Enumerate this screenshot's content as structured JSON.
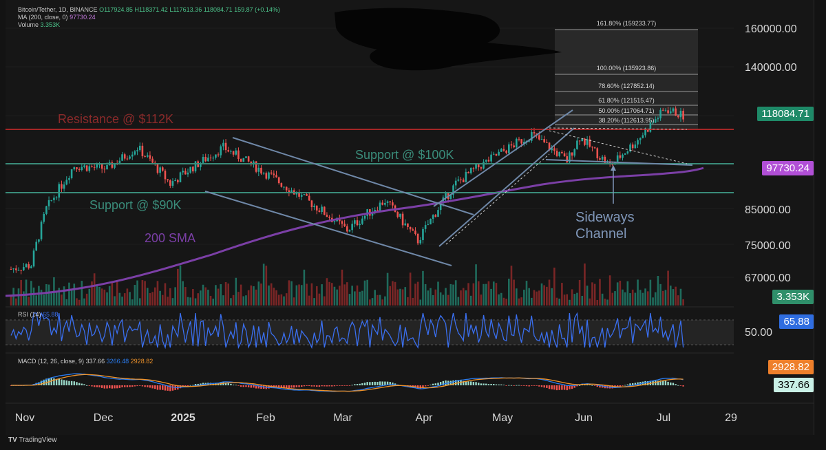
{
  "header": {
    "symbol_line": "Bitcoin/Tether, 1D, BINANCE",
    "ohlc": "O117924.85 H118371.42 L117613.36 118084.71 159.87 (+0.14%)",
    "ma_label": "MA (200, close, 0)",
    "ma_value": "97730.24",
    "volume_label": "Volume",
    "volume_value": "3.353K"
  },
  "price_axis": {
    "ticks": [
      "160000.00",
      "140000.00",
      "118084.71",
      "97730.24",
      "85000.00",
      "75000.00",
      "67000.00",
      "3.353K"
    ]
  },
  "badges": {
    "last_price": "118084.71",
    "ma_price": "97730.24",
    "volume": "3.353K",
    "rsi": "65.88",
    "rsi_tick": "50.00",
    "macd_signal": "2928.82",
    "macd_line": "337.66"
  },
  "colors": {
    "up": "#26a69a",
    "down": "#ef5350",
    "resistance": "#b22222",
    "support": "#3a8c7a",
    "ma": "#7b3fa6",
    "trend": "#6f88a8",
    "rsi": "#3a6ff0",
    "macd": "#2a7cf0",
    "signal": "#f0932a"
  },
  "annotations": {
    "resistance": "Resistance @ $112K",
    "support100": "Support @ $100K",
    "support90": "Support @ $90K",
    "sma": "200 SMA",
    "sideways1": "Sideways",
    "sideways2": "Channel"
  },
  "fib": {
    "l161": "161.80% (159233.77)",
    "l100": "100.00% (135923.86)",
    "l786": "78.60% (127852.14)",
    "l618": "61.80% (121515.47)",
    "l50": "50.00% (117064.71)",
    "l382": "38.20% (112613.95)"
  },
  "rsi": {
    "label": "RSI (14)",
    "value": "65.88"
  },
  "macd": {
    "label": "MACD (12, 26, close, 9)",
    "macd_value": "337.66",
    "hist_value": "3266.48",
    "signal_value": "2928.82"
  },
  "time_axis": [
    "Nov",
    "Dec",
    "2025",
    "Feb",
    "Mar",
    "Apr",
    "May",
    "Jun",
    "Jul",
    "29"
  ],
  "brand": "TradingView",
  "chart_data": {
    "type": "candlestick",
    "title": "Bitcoin/Tether, 1D, BINANCE",
    "x_range": [
      "2024-10-28",
      "2025-07-29"
    ],
    "y_range": [
      62000,
      165000
    ],
    "last_close": 118084.71,
    "levels": {
      "resistance": 112000,
      "support_100k": 100000,
      "support_90k": 90000
    },
    "ma200_last": 97730.24,
    "anchors": [
      {
        "x": "2024-10-28",
        "y": 69000
      },
      {
        "x": "2024-11-05",
        "y": 70000
      },
      {
        "x": "2024-11-11",
        "y": 85000
      },
      {
        "x": "2024-11-22",
        "y": 99000
      },
      {
        "x": "2024-12-05",
        "y": 98000
      },
      {
        "x": "2024-12-17",
        "y": 106000
      },
      {
        "x": "2024-12-30",
        "y": 93000
      },
      {
        "x": "2025-01-20",
        "y": 106000
      },
      {
        "x": "2025-02-03",
        "y": 98000
      },
      {
        "x": "2025-02-25",
        "y": 86000
      },
      {
        "x": "2025-03-10",
        "y": 79000
      },
      {
        "x": "2025-03-25",
        "y": 87500
      },
      {
        "x": "2025-04-07",
        "y": 76000
      },
      {
        "x": "2025-04-22",
        "y": 93000
      },
      {
        "x": "2025-05-08",
        "y": 103000
      },
      {
        "x": "2025-05-22",
        "y": 111000
      },
      {
        "x": "2025-06-05",
        "y": 101000
      },
      {
        "x": "2025-06-10",
        "y": 110000
      },
      {
        "x": "2025-06-22",
        "y": 99000
      },
      {
        "x": "2025-07-03",
        "y": 109000
      },
      {
        "x": "2025-07-14",
        "y": 121000
      },
      {
        "x": "2025-07-21",
        "y": 118084.71
      }
    ]
  }
}
